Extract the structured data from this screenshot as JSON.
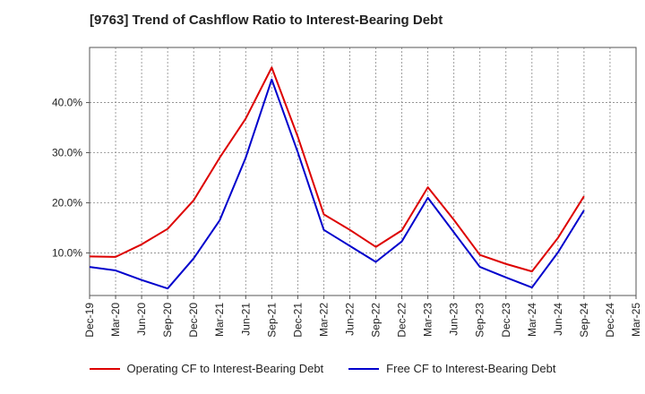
{
  "chart_data": {
    "type": "line",
    "title": "[9763]  Trend of Cashflow Ratio to Interest-Bearing Debt",
    "categories": [
      "Dec-19",
      "Mar-20",
      "Jun-20",
      "Sep-20",
      "Dec-20",
      "Mar-21",
      "Jun-21",
      "Sep-21",
      "Dec-21",
      "Mar-22",
      "Jun-22",
      "Sep-22",
      "Dec-22",
      "Mar-23",
      "Jun-23",
      "Sep-23",
      "Dec-23",
      "Mar-24",
      "Jun-24",
      "Sep-24",
      "Dec-24",
      "Mar-25"
    ],
    "series": [
      {
        "name": "Operating CF to Interest-Bearing Debt",
        "color": "#dd0000",
        "values": [
          9.3,
          9.2,
          11.7,
          14.8,
          20.5,
          29.0,
          36.8,
          47.0,
          33.2,
          17.7,
          14.6,
          11.2,
          14.5,
          23.1,
          16.6,
          9.6,
          7.8,
          6.3,
          13.0,
          21.3,
          null,
          null
        ]
      },
      {
        "name": "Free CF to Interest-Bearing Debt",
        "color": "#0000cc",
        "values": [
          7.2,
          6.5,
          4.6,
          2.9,
          8.9,
          16.5,
          29.0,
          44.6,
          30.1,
          14.6,
          11.4,
          8.2,
          12.3,
          21.0,
          14.1,
          7.2,
          5.1,
          3.1,
          10.1,
          18.5,
          null,
          null
        ]
      }
    ],
    "y_ticks": [
      "10.0%",
      "20.0%",
      "30.0%",
      "40.0%"
    ],
    "y_tick_values": [
      10,
      20,
      30,
      40
    ],
    "ylim": [
      1.5,
      51
    ],
    "grid": true,
    "legend_position": "bottom"
  }
}
